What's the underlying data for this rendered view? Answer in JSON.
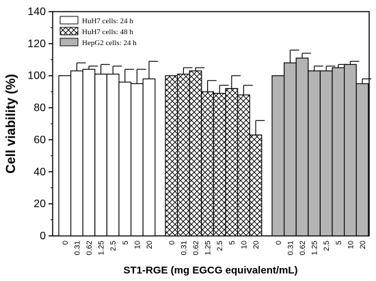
{
  "chart_data": {
    "type": "bar",
    "ylabel": "Cell viability (%)",
    "xlabel": "ST1-RGE (mg EGCG equivalent/mL)",
    "ylim": [
      0,
      140
    ],
    "yticks": [
      0,
      20,
      40,
      60,
      80,
      100,
      120,
      140
    ],
    "categories": [
      "0",
      "0.31",
      "0.62",
      "1.25",
      "2.5",
      "5",
      "10",
      "20"
    ],
    "legend_position": "top-left",
    "grid": false,
    "series": [
      {
        "name": "HuH7 cells: 24 h",
        "fill": "white",
        "color": "#ffffff",
        "values": [
          100,
          103,
          104,
          101,
          101,
          96,
          95,
          98
        ],
        "errors": [
          0,
          5,
          2,
          6,
          5,
          8,
          9,
          11
        ]
      },
      {
        "name": "HuH7 cells: 48 h",
        "fill": "crosshatch",
        "color": "#ffffff",
        "values": [
          100,
          101,
          103,
          90,
          89,
          92,
          88,
          63
        ],
        "errors": [
          0,
          4,
          2,
          7,
          5,
          8,
          6,
          9
        ]
      },
      {
        "name": "HepG2 cells: 24 h",
        "fill": "gray",
        "color": "#b4b4b4",
        "values": [
          100,
          108,
          111,
          103,
          103,
          105,
          107,
          95
        ],
        "errors": [
          0,
          8,
          3,
          3,
          3,
          2,
          2,
          3
        ]
      }
    ]
  }
}
